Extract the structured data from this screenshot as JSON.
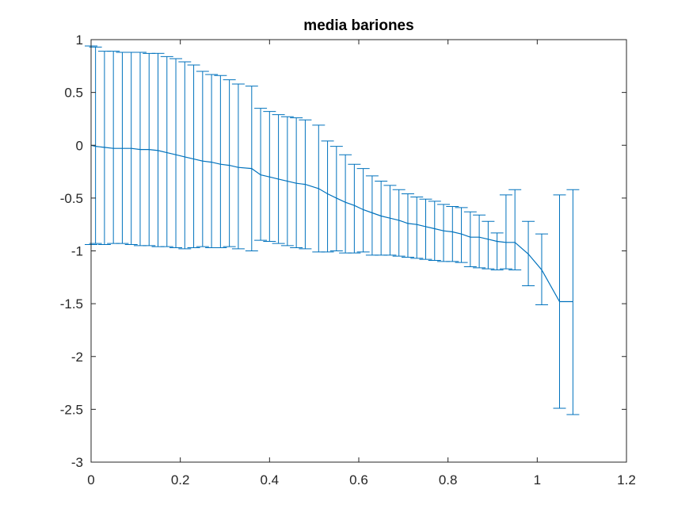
{
  "chart_data": {
    "type": "line",
    "title": "media bariones",
    "xlabel": "",
    "ylabel": "",
    "xlim": [
      0,
      1.2
    ],
    "ylim": [
      -3,
      1
    ],
    "xticks": [
      0,
      0.2,
      0.4,
      0.6,
      0.8,
      1,
      1.2
    ],
    "yticks": [
      -3,
      -2.5,
      -2,
      -1.5,
      -1,
      -0.5,
      0,
      0.5,
      1
    ],
    "xtick_labels": [
      "0",
      "0.2",
      "0.4",
      "0.6",
      "0.8",
      "1",
      "1.2"
    ],
    "ytick_labels": [
      "-3",
      "-2.5",
      "-2",
      "-1.5",
      "-1",
      "-0.5",
      "0",
      "0.5",
      "1"
    ],
    "grid": false,
    "legend": "none",
    "color": "#0072BD",
    "series": [
      {
        "x": [
          0.0,
          0.01,
          0.03,
          0.05,
          0.07,
          0.09,
          0.11,
          0.13,
          0.15,
          0.17,
          0.19,
          0.21,
          0.23,
          0.25,
          0.27,
          0.29,
          0.31,
          0.33,
          0.36,
          0.38,
          0.4,
          0.42,
          0.44,
          0.46,
          0.48,
          0.51,
          0.53,
          0.55,
          0.57,
          0.59,
          0.61,
          0.63,
          0.65,
          0.67,
          0.69,
          0.71,
          0.73,
          0.75,
          0.77,
          0.79,
          0.81,
          0.83,
          0.85,
          0.87,
          0.89,
          0.91,
          0.93,
          0.95,
          0.98,
          1.01,
          1.05,
          1.08
        ],
        "y": [
          0.0,
          -0.01,
          -0.02,
          -0.03,
          -0.03,
          -0.03,
          -0.04,
          -0.04,
          -0.05,
          -0.07,
          -0.09,
          -0.11,
          -0.13,
          -0.15,
          -0.16,
          -0.18,
          -0.19,
          -0.21,
          -0.22,
          -0.28,
          -0.3,
          -0.32,
          -0.34,
          -0.36,
          -0.37,
          -0.41,
          -0.46,
          -0.5,
          -0.54,
          -0.57,
          -0.61,
          -0.64,
          -0.67,
          -0.69,
          -0.71,
          -0.74,
          -0.75,
          -0.77,
          -0.79,
          -0.81,
          -0.82,
          -0.84,
          -0.87,
          -0.87,
          -0.89,
          -0.91,
          -0.92,
          -0.92,
          -1.03,
          -1.18,
          -1.48,
          -1.48
        ],
        "upper": [
          0.94,
          0.93,
          0.89,
          0.89,
          0.88,
          0.88,
          0.88,
          0.87,
          0.87,
          0.84,
          0.82,
          0.79,
          0.76,
          0.7,
          0.67,
          0.66,
          0.62,
          0.58,
          0.56,
          0.35,
          0.32,
          0.29,
          0.27,
          0.26,
          0.24,
          0.19,
          0.04,
          -0.01,
          -0.09,
          -0.18,
          -0.22,
          -0.29,
          -0.34,
          -0.38,
          -0.42,
          -0.46,
          -0.49,
          -0.51,
          -0.53,
          -0.56,
          -0.58,
          -0.59,
          -0.63,
          -0.66,
          -0.72,
          -0.83,
          -0.47,
          -0.42,
          -0.72,
          -0.84,
          -0.47,
          -0.42
        ],
        "lower": [
          -0.94,
          -0.93,
          -0.94,
          -0.93,
          -0.93,
          -0.94,
          -0.95,
          -0.95,
          -0.96,
          -0.96,
          -0.97,
          -0.98,
          -0.97,
          -0.96,
          -0.97,
          -0.97,
          -0.96,
          -0.98,
          -1.0,
          -0.9,
          -0.91,
          -0.93,
          -0.95,
          -0.97,
          -0.98,
          -1.01,
          -1.01,
          -1.0,
          -1.02,
          -1.02,
          -1.01,
          -1.04,
          -1.04,
          -1.04,
          -1.05,
          -1.06,
          -1.07,
          -1.08,
          -1.09,
          -1.1,
          -1.1,
          -1.11,
          -1.15,
          -1.16,
          -1.17,
          -1.18,
          -1.17,
          -1.18,
          -1.33,
          -1.51,
          -2.49,
          -2.55
        ]
      }
    ]
  }
}
